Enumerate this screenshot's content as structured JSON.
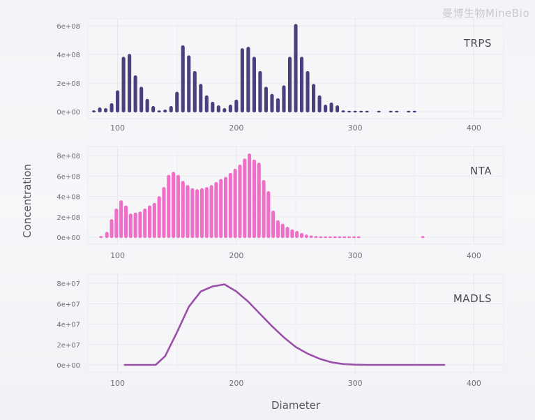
{
  "watermark": "曼博生物MineBio",
  "ylabel": "Concentration",
  "xlabel": "Diameter",
  "chart_data": [
    {
      "type": "bar",
      "label": "TRPS",
      "color": "#4b3f7e",
      "xlim": [
        75,
        425
      ],
      "ylim": [
        0,
        650000000
      ],
      "xticks": [
        100,
        200,
        300,
        400
      ],
      "yticks": [
        0,
        200000000,
        400000000,
        600000000
      ],
      "ytick_labels": [
        "0e+00",
        "2e+08",
        "4e+08",
        "6e+08"
      ],
      "bar_width": 3.0,
      "x": [
        80,
        85,
        90,
        95,
        100,
        105,
        110,
        115,
        120,
        125,
        130,
        135,
        140,
        145,
        150,
        155,
        160,
        165,
        170,
        175,
        180,
        185,
        190,
        195,
        200,
        205,
        210,
        215,
        220,
        225,
        230,
        235,
        240,
        245,
        250,
        255,
        260,
        265,
        270,
        275,
        280,
        285,
        290,
        295,
        300,
        305,
        310,
        320,
        330,
        335,
        345,
        350
      ],
      "values": [
        15000000,
        35000000,
        30000000,
        65000000,
        155000000,
        390000000,
        410000000,
        260000000,
        180000000,
        95000000,
        45000000,
        15000000,
        20000000,
        45000000,
        145000000,
        470000000,
        400000000,
        290000000,
        200000000,
        120000000,
        75000000,
        50000000,
        30000000,
        55000000,
        90000000,
        450000000,
        460000000,
        390000000,
        290000000,
        180000000,
        130000000,
        100000000,
        190000000,
        390000000,
        620000000,
        390000000,
        290000000,
        200000000,
        120000000,
        55000000,
        70000000,
        50000000,
        15000000,
        10000000,
        10000000,
        10000000,
        10000000,
        10000000,
        10000000,
        10000000,
        10000000,
        10000000
      ]
    },
    {
      "type": "bar",
      "label": "NTA",
      "color": "#ef6fc8",
      "xlim": [
        75,
        425
      ],
      "ylim": [
        0,
        890000000
      ],
      "xticks": [
        100,
        200,
        300,
        400
      ],
      "yticks": [
        0,
        200000000,
        400000000,
        600000000,
        800000000
      ],
      "ytick_labels": [
        "0e+00",
        "2e+08",
        "4e+08",
        "6e+08",
        "8e+08"
      ],
      "bar_width": 3.0,
      "x": [
        86,
        91,
        95,
        99,
        103,
        107,
        111,
        115,
        119,
        123,
        127,
        131,
        135,
        139,
        143,
        147,
        151,
        155,
        159,
        163,
        167,
        171,
        175,
        179,
        183,
        187,
        191,
        195,
        199,
        203,
        207,
        211,
        215,
        219,
        223,
        227,
        231,
        235,
        239,
        243,
        247,
        251,
        255,
        259,
        263,
        267,
        271,
        275,
        279,
        283,
        287,
        291,
        295,
        299,
        303,
        357
      ],
      "values": [
        20000000,
        60000000,
        185000000,
        290000000,
        370000000,
        320000000,
        240000000,
        250000000,
        260000000,
        290000000,
        320000000,
        345000000,
        410000000,
        500000000,
        620000000,
        650000000,
        620000000,
        560000000,
        520000000,
        490000000,
        480000000,
        490000000,
        500000000,
        520000000,
        550000000,
        580000000,
        600000000,
        640000000,
        680000000,
        720000000,
        780000000,
        830000000,
        770000000,
        740000000,
        570000000,
        460000000,
        270000000,
        175000000,
        140000000,
        110000000,
        85000000,
        70000000,
        50000000,
        35000000,
        25000000,
        20000000,
        15000000,
        15000000,
        10000000,
        10000000,
        10000000,
        10000000,
        10000000,
        10000000,
        10000000,
        20000000
      ]
    },
    {
      "type": "line",
      "label": "MADLS",
      "color": "#9a4fa8",
      "xlim": [
        75,
        425
      ],
      "ylim": [
        0,
        89000000
      ],
      "xticks": [
        100,
        200,
        300,
        400
      ],
      "yticks": [
        0,
        20000000,
        40000000,
        60000000,
        80000000
      ],
      "ytick_labels": [
        "0e+00",
        "2e+07",
        "4e+07",
        "6e+07",
        "8e+07"
      ],
      "x": [
        106,
        115,
        125,
        132,
        140,
        150,
        160,
        170,
        180,
        190,
        200,
        210,
        220,
        230,
        240,
        250,
        260,
        270,
        280,
        290,
        300,
        310,
        320,
        330,
        340,
        350,
        360,
        370,
        375
      ],
      "values": [
        0,
        0,
        0,
        0,
        8500000,
        32000000,
        57000000,
        72000000,
        77000000,
        79000000,
        72000000,
        62000000,
        50000000,
        38000000,
        27000000,
        17500000,
        11000000,
        6000000,
        2500000,
        800000,
        200000,
        0,
        0,
        0,
        0,
        0,
        0,
        0,
        0
      ]
    }
  ]
}
